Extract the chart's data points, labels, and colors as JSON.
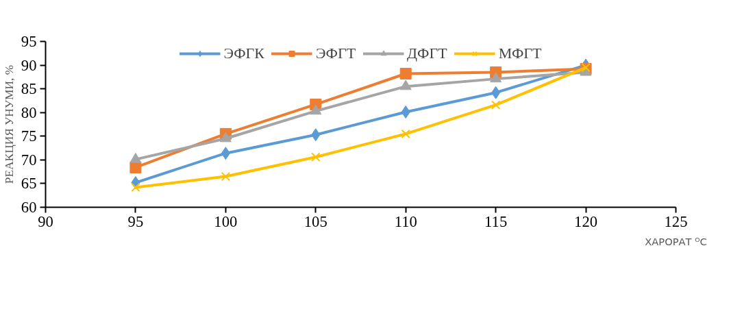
{
  "chart_data": {
    "type": "line",
    "xlabel": "ХАРОРАТ ᴼC",
    "ylabel": "РЕАКЦИЯ УНУМИ, %",
    "x": [
      95,
      100,
      105,
      110,
      115,
      120
    ],
    "series": [
      {
        "name": "ЭФГК",
        "color": "#5b9bd5",
        "marker": "diamond",
        "values": [
          65.2,
          71.4,
          75.3,
          80.1,
          84.2,
          90.0
        ]
      },
      {
        "name": "ЭФГТ",
        "color": "#ed7d31",
        "marker": "square",
        "values": [
          68.4,
          75.5,
          81.7,
          88.2,
          88.5,
          89.2
        ]
      },
      {
        "name": "ДФГТ",
        "color": "#a5a5a5",
        "marker": "triangle",
        "values": [
          70.1,
          74.5,
          80.3,
          85.5,
          87.1,
          88.5
        ]
      },
      {
        "name": "МФГТ",
        "color": "#ffc000",
        "marker": "cross",
        "values": [
          64.2,
          66.5,
          70.6,
          75.5,
          81.6,
          89.5
        ]
      }
    ],
    "xlim": [
      90,
      125
    ],
    "xticks": [
      90,
      95,
      100,
      105,
      110,
      115,
      120,
      125
    ],
    "ylim": [
      60,
      95
    ],
    "yticks": [
      60,
      65,
      70,
      75,
      80,
      85,
      90,
      95
    ],
    "grid": false,
    "legend": "top"
  }
}
